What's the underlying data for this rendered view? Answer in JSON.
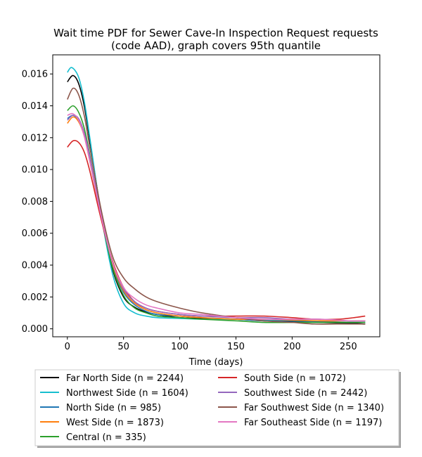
{
  "chart_data": {
    "type": "line",
    "title_line1": "Wait time PDF for Sewer Cave-In Inspection Request  requests",
    "title_line2": "(code AAD), graph covers 95th quantile",
    "xlabel": "Time (days)",
    "ylabel": "",
    "xlim": [
      -13,
      278
    ],
    "ylim": [
      -0.0005,
      0.0172
    ],
    "x_ticks": [
      0,
      50,
      100,
      150,
      200,
      250
    ],
    "y_ticks": [
      0.0,
      0.002,
      0.004,
      0.006,
      0.008,
      0.01,
      0.012,
      0.014,
      0.016
    ],
    "y_tick_labels": [
      "0.000",
      "0.002",
      "0.004",
      "0.006",
      "0.008",
      "0.010",
      "0.012",
      "0.014",
      "0.016"
    ],
    "grid": false,
    "legend_placement": "below plot, two columns",
    "series": [
      {
        "name": "Far North Side (n = 2244)",
        "color": "#000000",
        "x": [
          0,
          5,
          10,
          15,
          20,
          30,
          40,
          50,
          60,
          70,
          80,
          100,
          120,
          150,
          175,
          200,
          225,
          250,
          265
        ],
        "y": [
          0.0155,
          0.0159,
          0.0154,
          0.014,
          0.0118,
          0.0073,
          0.0038,
          0.002,
          0.00135,
          0.00105,
          0.0009,
          0.0007,
          0.00065,
          0.0006,
          0.0005,
          0.00045,
          0.0004,
          0.00035,
          0.0003
        ]
      },
      {
        "name": "Northwest Side (n = 1604)",
        "color": "#17becf",
        "x": [
          0,
          4,
          10,
          15,
          20,
          30,
          40,
          50,
          60,
          70,
          80,
          100,
          120,
          150,
          175,
          200,
          225,
          250,
          265
        ],
        "y": [
          0.0161,
          0.0164,
          0.0158,
          0.0143,
          0.012,
          0.0072,
          0.0035,
          0.0016,
          0.001,
          0.0008,
          0.0007,
          0.00065,
          0.0006,
          0.0006,
          0.00055,
          0.0005,
          0.00045,
          0.0004,
          0.0004
        ]
      },
      {
        "name": "North Side (n = 985)",
        "color": "#1f77b4",
        "x": [
          0,
          5,
          10,
          15,
          20,
          30,
          40,
          50,
          60,
          70,
          80,
          100,
          120,
          150,
          175,
          200,
          225,
          250,
          265
        ],
        "y": [
          0.0132,
          0.0134,
          0.0131,
          0.0122,
          0.0106,
          0.007,
          0.004,
          0.0023,
          0.0015,
          0.0011,
          0.0009,
          0.0008,
          0.0007,
          0.0006,
          0.0005,
          0.0005,
          0.00045,
          0.0004,
          0.0004
        ]
      },
      {
        "name": "West Side (n = 1873)",
        "color": "#ff7f0e",
        "x": [
          0,
          5,
          10,
          15,
          20,
          30,
          40,
          50,
          60,
          70,
          80,
          100,
          120,
          150,
          175,
          200,
          225,
          250,
          265
        ],
        "y": [
          0.0129,
          0.0133,
          0.013,
          0.0121,
          0.0105,
          0.007,
          0.0041,
          0.0024,
          0.0016,
          0.0012,
          0.001,
          0.0008,
          0.0007,
          0.0006,
          0.0006,
          0.00055,
          0.0005,
          0.0005,
          0.0005
        ]
      },
      {
        "name": "Central (n = 335)",
        "color": "#2ca02c",
        "x": [
          0,
          5,
          10,
          15,
          20,
          30,
          40,
          50,
          60,
          70,
          80,
          100,
          120,
          150,
          175,
          200,
          225,
          250,
          265
        ],
        "y": [
          0.0137,
          0.014,
          0.0136,
          0.0126,
          0.0109,
          0.0071,
          0.0039,
          0.0021,
          0.0013,
          0.001,
          0.0008,
          0.0007,
          0.0006,
          0.0005,
          0.0004,
          0.0004,
          0.0004,
          0.0004,
          0.0004
        ]
      },
      {
        "name": "South Side (n = 1072)",
        "color": "#d62728",
        "x": [
          0,
          5,
          10,
          15,
          20,
          30,
          40,
          50,
          60,
          70,
          80,
          100,
          120,
          150,
          175,
          200,
          220,
          240,
          255,
          265
        ],
        "y": [
          0.0114,
          0.0118,
          0.0117,
          0.0111,
          0.0099,
          0.0069,
          0.0043,
          0.0026,
          0.0017,
          0.0013,
          0.0011,
          0.0009,
          0.0008,
          0.0008,
          0.0008,
          0.0007,
          0.0006,
          0.0006,
          0.0007,
          0.0008
        ]
      },
      {
        "name": "Southwest Side (n = 2442)",
        "color": "#9467bd",
        "x": [
          0,
          5,
          10,
          15,
          20,
          30,
          40,
          50,
          60,
          70,
          80,
          100,
          120,
          150,
          175,
          200,
          225,
          250,
          265
        ],
        "y": [
          0.0131,
          0.0134,
          0.0132,
          0.0123,
          0.0108,
          0.0072,
          0.0042,
          0.0025,
          0.0017,
          0.0013,
          0.0011,
          0.0009,
          0.0008,
          0.0007,
          0.0007,
          0.0006,
          0.0006,
          0.0005,
          0.0005
        ]
      },
      {
        "name": "Far Southwest Side (n = 1340)",
        "color": "#8c564b",
        "x": [
          0,
          5,
          10,
          15,
          20,
          30,
          40,
          50,
          60,
          70,
          80,
          100,
          120,
          150,
          175,
          200,
          220,
          240,
          255,
          265
        ],
        "y": [
          0.0144,
          0.0151,
          0.0147,
          0.0134,
          0.0114,
          0.0075,
          0.0046,
          0.0032,
          0.0025,
          0.002,
          0.0017,
          0.0013,
          0.001,
          0.0007,
          0.0005,
          0.0004,
          0.0003,
          0.0003,
          0.0003,
          0.0003
        ]
      },
      {
        "name": "Far Southeast Side (n = 1197)",
        "color": "#e377c2",
        "x": [
          0,
          5,
          10,
          15,
          20,
          30,
          40,
          50,
          60,
          70,
          80,
          100,
          120,
          150,
          175,
          200,
          225,
          250,
          265
        ],
        "y": [
          0.0134,
          0.0135,
          0.0131,
          0.0121,
          0.0105,
          0.0071,
          0.0042,
          0.0026,
          0.0019,
          0.0015,
          0.0013,
          0.001,
          0.0009,
          0.0007,
          0.0006,
          0.0006,
          0.0006,
          0.0005,
          0.0005
        ]
      }
    ]
  }
}
